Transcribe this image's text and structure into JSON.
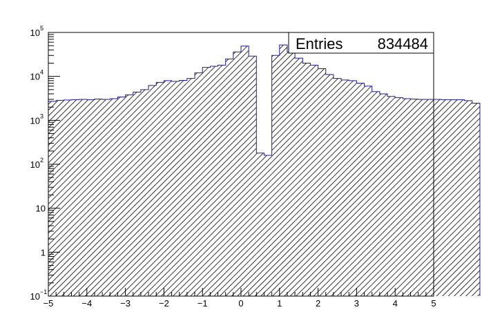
{
  "chart_data": {
    "type": "bar",
    "style": "histogram",
    "x_bin_edges_start": -5,
    "x_bin_width": 0.2,
    "x_ticks": [
      -5,
      -4,
      -3,
      -2,
      -1,
      0,
      1,
      2,
      3,
      4,
      5
    ],
    "x_tick_labels": [
      "−5",
      "−4",
      "−3",
      "−2",
      "−1",
      "0",
      "1",
      "2",
      "3",
      "4",
      "5"
    ],
    "xlim": [
      -5,
      5
    ],
    "y_scale": "log",
    "ylim": [
      0.1,
      100000
    ],
    "y_ticks": [
      {
        "value": 0.1,
        "base": "10",
        "exp": "−1"
      },
      {
        "value": 1,
        "base": "1",
        "exp": ""
      },
      {
        "value": 10,
        "base": "10",
        "exp": ""
      },
      {
        "value": 100,
        "base": "10",
        "exp": "2"
      },
      {
        "value": 1000,
        "base": "10",
        "exp": "3"
      },
      {
        "value": 10000,
        "base": "10",
        "exp": "4"
      },
      {
        "value": 100000,
        "base": "10",
        "exp": "5"
      }
    ],
    "values": [
      2700,
      2850,
      2900,
      2950,
      3000,
      2950,
      3050,
      3000,
      3100,
      3400,
      3800,
      4400,
      5000,
      6200,
      7300,
      8000,
      7700,
      8100,
      9000,
      12000,
      16000,
      17000,
      18000,
      25000,
      36000,
      49000,
      29000,
      180,
      160,
      30000,
      52000,
      36000,
      26000,
      20000,
      18000,
      15000,
      11000,
      9000,
      8300,
      8000,
      7000,
      6000,
      4500,
      4000,
      3500,
      3300,
      3100,
      3050,
      3000,
      3000,
      3000,
      2950,
      2950,
      2950,
      2800,
      2450
    ],
    "fill_color": "#3a3a6a",
    "hatch_color": "#000000",
    "line_color": "#1a1aa0",
    "grid": false,
    "legend": "none",
    "stats_box": {
      "label": "Entries",
      "value": "834484"
    }
  }
}
